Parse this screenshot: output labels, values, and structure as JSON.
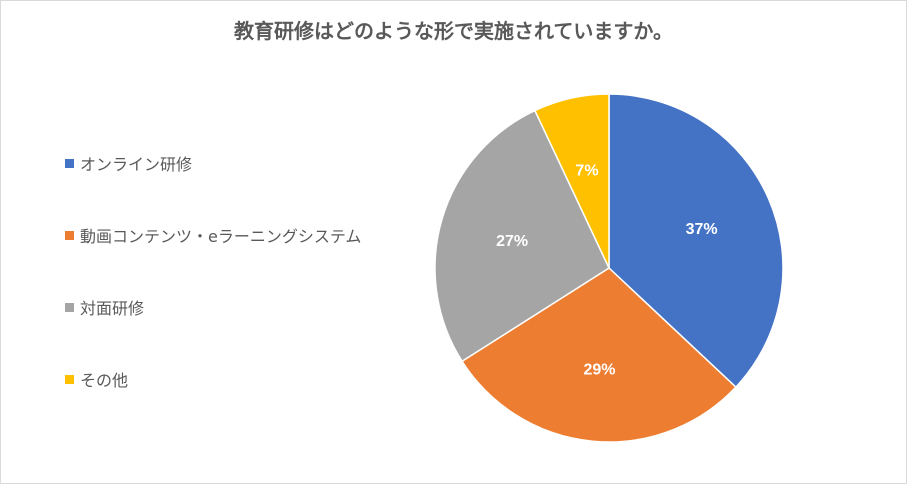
{
  "chart_data": {
    "type": "pie",
    "title": "教育研修はどのような形で実施されていますか。",
    "categories": [
      "オンライン研修",
      "動画コンテンツ・eラーニングシステム",
      "対面研修",
      "その他"
    ],
    "values": [
      37,
      29,
      27,
      7
    ],
    "data_labels": [
      "37%",
      "29%",
      "27%",
      "7%"
    ],
    "colors": [
      "#4472C4",
      "#ED7D31",
      "#A5A5A5",
      "#FFC000"
    ],
    "legend_position": "left"
  }
}
